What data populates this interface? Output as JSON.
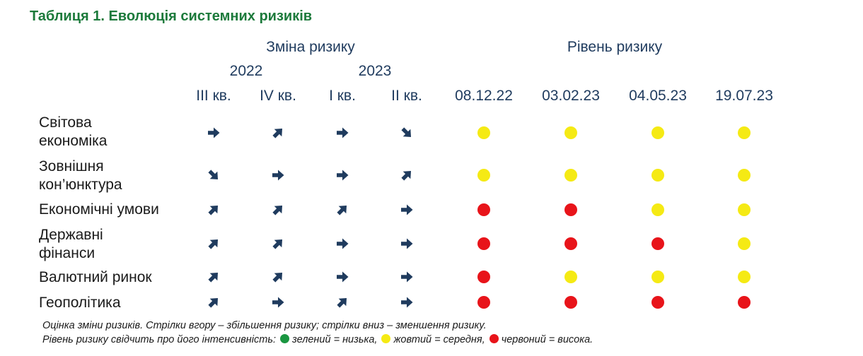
{
  "title": "Таблиця 1. Еволюція системних ризиків",
  "headers": {
    "change_group": "Зміна ризику",
    "level_group": "Рівень ризику",
    "years": [
      "2022",
      "2023"
    ],
    "change_cols": [
      "III кв.",
      "IV кв.",
      "I кв.",
      "II кв."
    ],
    "level_cols": [
      "08.12.22",
      "03.02.23",
      "04.05.23",
      "19.07.23"
    ]
  },
  "colors": {
    "arrow": "#1f3b5e",
    "yellow": "#f5ea14",
    "red": "#e8141a",
    "green": "#1a9641",
    "title": "#1c7a3b"
  },
  "rows": [
    {
      "label": "Світова\nекономіка",
      "changes": [
        "right",
        "up",
        "right",
        "down"
      ],
      "levels": [
        "yellow",
        "yellow",
        "yellow",
        "yellow"
      ]
    },
    {
      "label": "Зовнішня\nкон’юнктура",
      "changes": [
        "down",
        "right",
        "right",
        "up"
      ],
      "levels": [
        "yellow",
        "yellow",
        "yellow",
        "yellow"
      ]
    },
    {
      "label": "Економічні умови",
      "changes": [
        "up",
        "up",
        "up",
        "right"
      ],
      "levels": [
        "red",
        "red",
        "yellow",
        "yellow"
      ]
    },
    {
      "label": "Державні\nфінанси",
      "changes": [
        "up",
        "up",
        "right",
        "right"
      ],
      "levels": [
        "red",
        "red",
        "red",
        "yellow"
      ]
    },
    {
      "label": "Валютний ринок",
      "changes": [
        "up",
        "up",
        "right",
        "right"
      ],
      "levels": [
        "red",
        "yellow",
        "yellow",
        "yellow"
      ]
    },
    {
      "label": "Геополітика",
      "changes": [
        "up",
        "right",
        "up",
        "right"
      ],
      "levels": [
        "red",
        "red",
        "red",
        "red"
      ]
    }
  ],
  "notes": {
    "line1": "Оцінка зміни ризиків. Стрілки вгору – збільшення ризику; стрілки вниз – зменшення ризику.",
    "line2_prefix": "Рівень ризику свідчить про його інтенсивність:",
    "legend": [
      {
        "color": "green",
        "text": "зелений = низька,"
      },
      {
        "color": "yellow",
        "text": "жовтий = середня,"
      },
      {
        "color": "red",
        "text": "червоний = висока."
      }
    ]
  }
}
